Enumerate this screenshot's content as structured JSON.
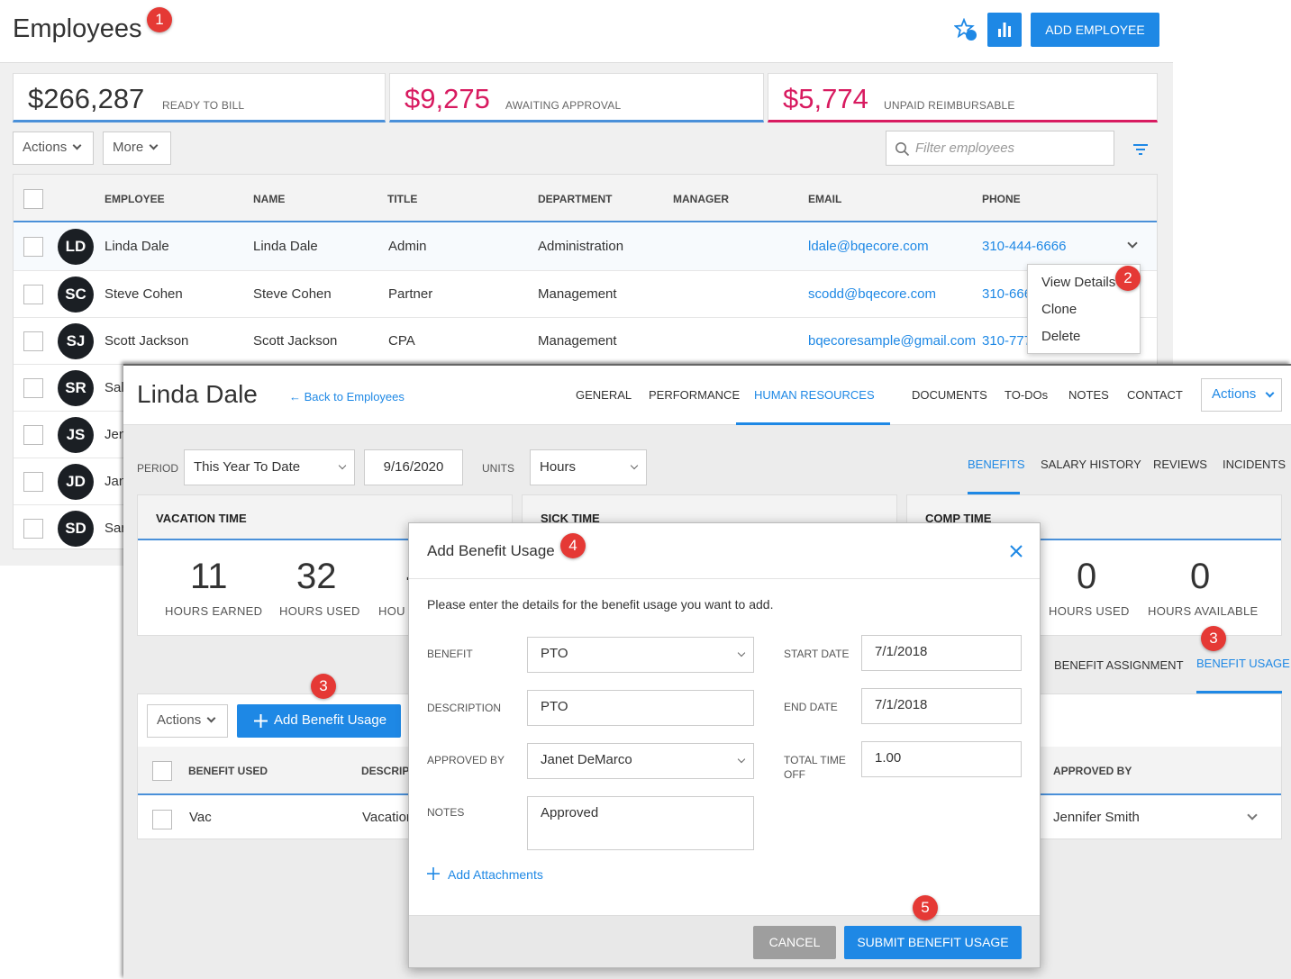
{
  "employees_page": {
    "title": "Employees",
    "add_button": "ADD EMPLOYEE",
    "summary": [
      {
        "amount": "$266,287",
        "label": "READY TO BILL",
        "color": "#333333",
        "underline": "#4a90d9"
      },
      {
        "amount": "$9,275",
        "label": "AWAITING APPROVAL",
        "color": "#d81b60",
        "underline": "#4a90d9"
      },
      {
        "amount": "$5,774",
        "label": "UNPAID REIMBURSABLE",
        "color": "#d81b60",
        "underline": "#d81b60"
      }
    ],
    "actions_label": "Actions",
    "more_label": "More",
    "filter_placeholder": "Filter employees",
    "columns": [
      "EMPLOYEE",
      "NAME",
      "TITLE",
      "DEPARTMENT",
      "MANAGER",
      "EMAIL",
      "PHONE"
    ],
    "rows": [
      {
        "initials": "LD",
        "employee": "Linda Dale",
        "name": "Linda Dale",
        "title": "Admin",
        "department": "Administration",
        "email": "ldale@bqecore.com",
        "phone": "310-444-6666"
      },
      {
        "initials": "SC",
        "employee": "Steve Cohen",
        "name": "Steve Cohen",
        "title": "Partner",
        "department": "Management",
        "email": "scodd@bqecore.com",
        "phone": "310-666"
      },
      {
        "initials": "SJ",
        "employee": "Scott Jackson",
        "name": "Scott Jackson",
        "title": "CPA",
        "department": "Management",
        "email": "bqecoresample@gmail.com",
        "phone": "310-777"
      },
      {
        "initials": "SR",
        "employee": "Sal"
      },
      {
        "initials": "JS",
        "employee": "Jen"
      },
      {
        "initials": "JD",
        "employee": "Jan"
      },
      {
        "initials": "SD",
        "employee": "Sar"
      }
    ],
    "context_menu": [
      "View Details",
      "Clone",
      "Delete"
    ]
  },
  "detail": {
    "name": "Linda Dale",
    "back_link": "← Back to Employees",
    "tabs": [
      "GENERAL",
      "PERFORMANCE",
      "HUMAN RESOURCES",
      "DOCUMENTS",
      "TO-DOs",
      "NOTES",
      "CONTACT"
    ],
    "actions_label": "Actions",
    "period_label": "PERIOD",
    "period_value": "This Year To Date",
    "date_value": "9/16/2020",
    "units_label": "UNITS",
    "units_value": "Hours",
    "subtabs": [
      "BENEFITS",
      "SALARY HISTORY",
      "REVIEWS",
      "INCIDENTS"
    ],
    "vacation": {
      "title": "VACATION TIME",
      "earned": "11",
      "earned_label": "HOURS EARNED",
      "used": "32",
      "used_label": "HOURS USED",
      "avail_partial": "-",
      "avail_label_partial": "HOU"
    },
    "sick": {
      "title": "SICK TIME"
    },
    "comp": {
      "title": "COMP TIME",
      "used": "0",
      "used_label": "HOURS USED",
      "available": "0",
      "available_label": "HOURS AVAILABLE"
    },
    "benefit_tabs": [
      "BENEFIT ASSIGNMENT",
      "BENEFIT USAGE"
    ],
    "usage_actions": "Actions",
    "add_usage_button": "Add Benefit Usage",
    "usage_columns": [
      "BENEFIT USED",
      "DESCRIPT",
      "APPROVED BY"
    ],
    "usage_row": {
      "benefit": "Vac",
      "description": "Vacation",
      "approved_by": "Jennifer Smith"
    }
  },
  "modal": {
    "title": "Add Benefit Usage",
    "instruction": "Please enter the details for the benefit usage you want to add.",
    "benefit_label": "BENEFIT",
    "benefit_value": "PTO",
    "description_label": "DESCRIPTION",
    "description_value": "PTO",
    "approved_label": "APPROVED BY",
    "approved_value": "Janet DeMarco",
    "notes_label": "NOTES",
    "notes_value": "Approved",
    "start_label": "START DATE",
    "start_value": "7/1/2018",
    "end_label": "END DATE",
    "end_value": "7/1/2018",
    "total_label_1": "TOTAL TIME",
    "total_label_2": "OFF",
    "total_value": "1.00",
    "attachments": "Add Attachments",
    "cancel": "CANCEL",
    "submit": "SUBMIT BENEFIT USAGE"
  },
  "badges": [
    "1",
    "2",
    "3",
    "3",
    "4",
    "5"
  ],
  "colors": {
    "accent": "#1e88e5",
    "magenta": "#d81b60",
    "badge": "#e53935"
  }
}
